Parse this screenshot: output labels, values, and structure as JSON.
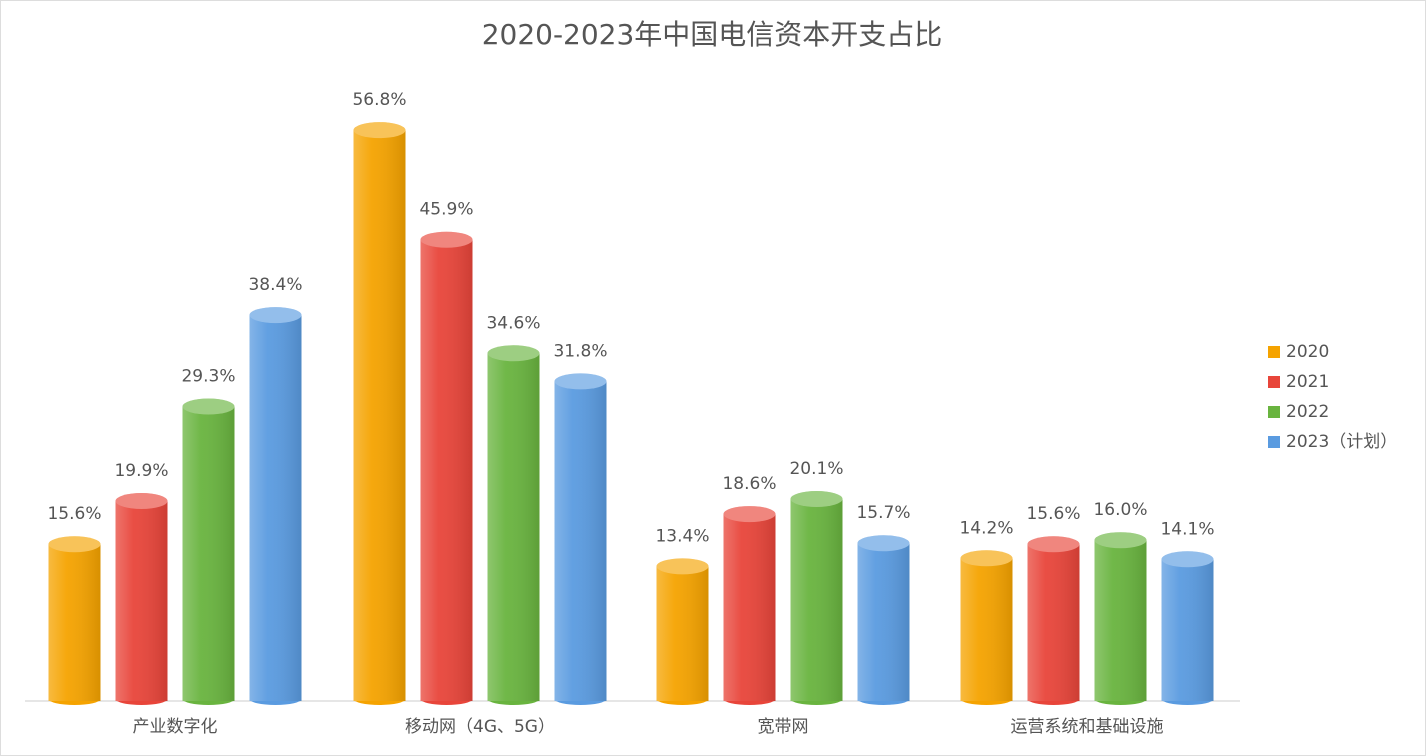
{
  "chart_data": {
    "type": "bar",
    "title": "2020-2023年中国电信资本开支占比",
    "categories": [
      "产业数字化",
      "移动网（4G、5G）",
      "宽带网",
      "运营系统和基础设施"
    ],
    "series": [
      {
        "name": "2020",
        "color": "#f5a300",
        "values": [
          15.6,
          56.8,
          13.4,
          14.2
        ],
        "value_labels": [
          "15.6%",
          "56.8%",
          "13.4%",
          "14.2%"
        ]
      },
      {
        "name": "2021",
        "color": "#e8453a",
        "values": [
          19.9,
          45.9,
          18.6,
          15.6
        ],
        "value_labels": [
          "19.9%",
          "45.9%",
          "18.6%",
          "15.6%"
        ]
      },
      {
        "name": "2022",
        "color": "#69b43f",
        "values": [
          29.3,
          34.6,
          20.1,
          16.0
        ],
        "value_labels": [
          "29.3%",
          "34.6%",
          "20.1%",
          "16.0%"
        ]
      },
      {
        "name": "2023（计划）",
        "color": "#5a9be0",
        "values": [
          38.4,
          31.8,
          15.7,
          14.1
        ],
        "value_labels": [
          "38.4%",
          "31.8%",
          "15.7%",
          "14.1%"
        ]
      }
    ],
    "legend": "right"
  }
}
